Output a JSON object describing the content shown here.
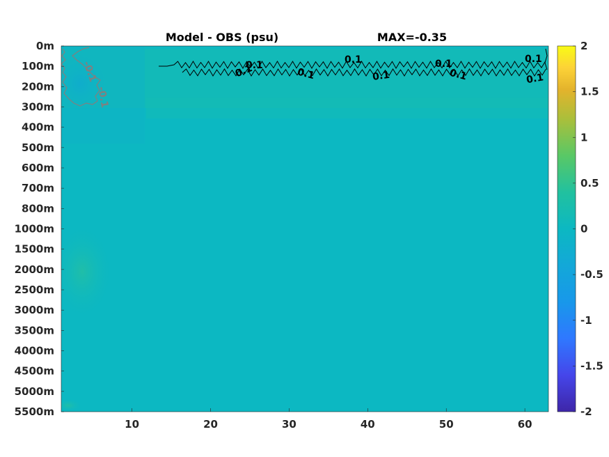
{
  "chart_data": {
    "type": "heatmap",
    "title": "Model - OBS (psu)",
    "max_label": "MAX=-0.35",
    "x_ticks": [
      10,
      20,
      30,
      40,
      50,
      60
    ],
    "xlim": [
      1,
      63
    ],
    "y_ticks": [
      "0m",
      "100m",
      "200m",
      "300m",
      "400m",
      "500m",
      "600m",
      "700m",
      "800m",
      "1000m",
      "1500m",
      "2000m",
      "2500m",
      "3000m",
      "3500m",
      "4000m",
      "4500m",
      "5000m",
      "5500m"
    ],
    "colorbar": {
      "ticks": [
        "2",
        "1.5",
        "1",
        "0.5",
        "0",
        "-0.5",
        "-1",
        "-1.5",
        "-2"
      ],
      "clim": [
        -2,
        2
      ],
      "colors": [
        "#3e26a8",
        "#4546ea",
        "#2f78ff",
        "#1898ea",
        "#0cb8c2",
        "#21c19f",
        "#59c866",
        "#aabf3b",
        "#e3b32c",
        "#fcd237",
        "#f9fb15"
      ]
    },
    "background_value": 0.0,
    "contours": [
      {
        "level": 0.1,
        "color": "#000000",
        "label": "0.1"
      },
      {
        "level": -0.1,
        "color": "#808080",
        "label": "-0.1"
      }
    ],
    "contour_labels": {
      "positive": [
        "0.1",
        "0.1",
        "0.1",
        "0.1",
        "0.1",
        "0.1",
        "0.1",
        "0.1",
        "0.1"
      ],
      "negative": [
        "-0.1",
        "-0.1"
      ]
    }
  }
}
